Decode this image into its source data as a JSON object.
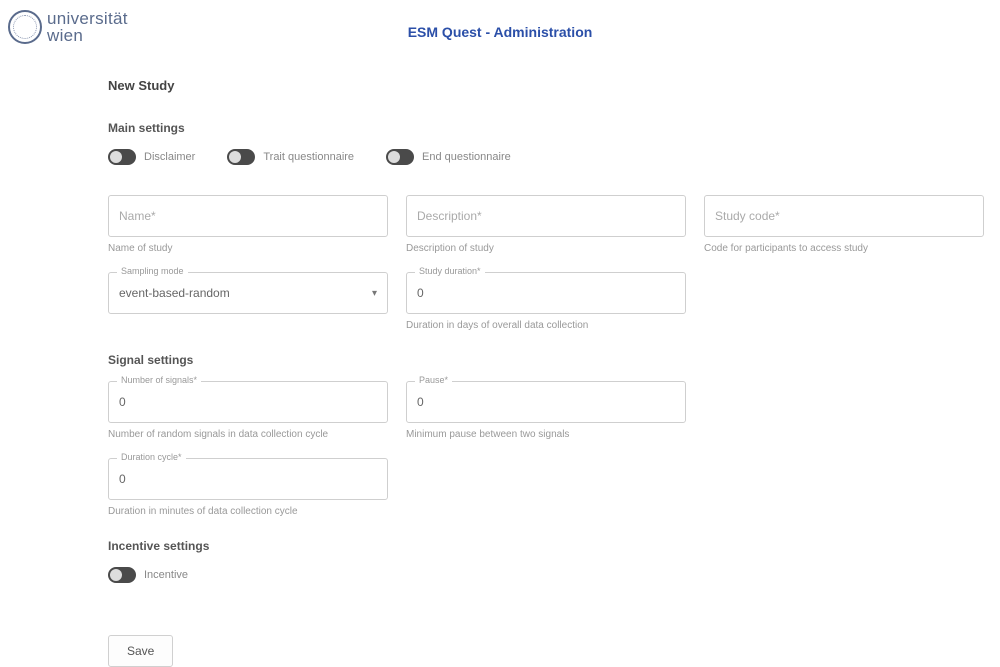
{
  "header": {
    "uni_line1": "universität",
    "uni_line2": "wien",
    "app_title": "ESM Quest - Administration"
  },
  "page": {
    "heading": "New Study"
  },
  "main_settings": {
    "section": "Main settings",
    "toggles": [
      {
        "label": "Disclaimer"
      },
      {
        "label": "Trait questionnaire"
      },
      {
        "label": "End questionnaire"
      }
    ],
    "fields": {
      "name": {
        "placeholder": "Name*",
        "helper": "Name of study"
      },
      "description": {
        "placeholder": "Description*",
        "helper": "Description of study"
      },
      "study_code": {
        "placeholder": "Study code*",
        "helper": "Code for participants to access study"
      },
      "sampling_mode": {
        "float": "Sampling mode",
        "value": "event-based-random"
      },
      "study_duration": {
        "float": "Study duration*",
        "value": "0",
        "helper": "Duration in days of overall data collection"
      }
    }
  },
  "signal_settings": {
    "section": "Signal settings",
    "fields": {
      "number_signals": {
        "float": "Number of signals*",
        "value": "0",
        "helper": "Number of random signals in data collection cycle"
      },
      "pause": {
        "float": "Pause*",
        "value": "0",
        "helper": "Minimum pause between two signals"
      },
      "duration_cycle": {
        "float": "Duration cycle*",
        "value": "0",
        "helper": "Duration in minutes of data collection cycle"
      }
    }
  },
  "incentive_settings": {
    "section": "Incentive settings",
    "toggle": {
      "label": "Incentive"
    }
  },
  "actions": {
    "save": "Save"
  },
  "colors": {
    "primary": "#2b4fa8",
    "logo": "#5a6b8c",
    "border": "#cfcfcf",
    "text": "#555555",
    "helper": "#999999",
    "switch_track": "#4a4a4a",
    "background": "#ffffff"
  }
}
